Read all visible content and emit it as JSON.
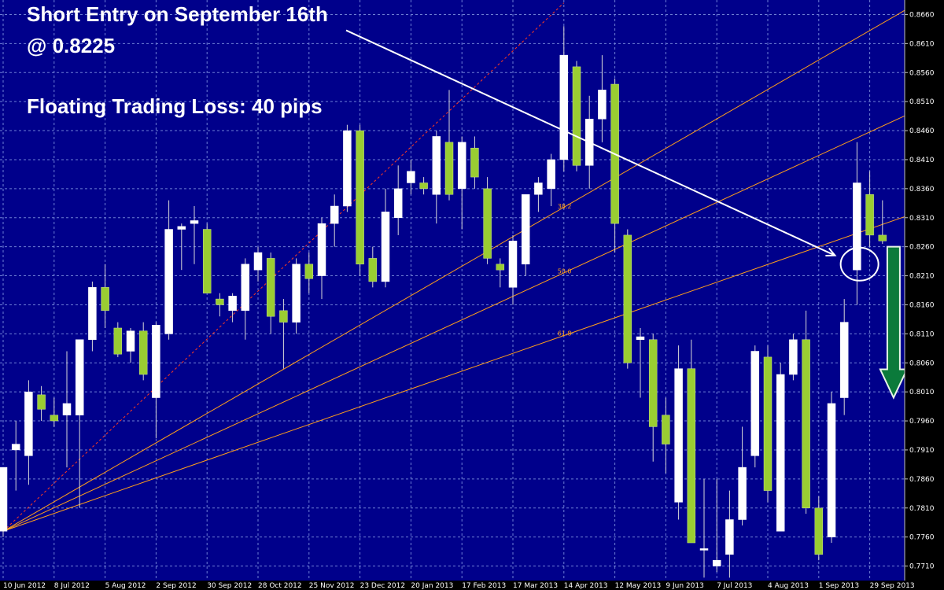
{
  "annotations": {
    "line1": "Short Entry on September 16th",
    "line2": "@ 0.8225",
    "line3": "Floating Trading Loss: 40 pips"
  },
  "colors": {
    "background": "#00008b",
    "grid": "#6e7fd6",
    "bull": "#ffffff",
    "bear": "#9acd32",
    "wick": "#d8d8d8",
    "fan": "#ff9f1a",
    "arrow_white": "#ffffff",
    "arrow_green": "#0b7a3b"
  },
  "chart_data": {
    "type": "candlestick",
    "symbol_timeframe": "weekly",
    "ylim": [
      0.7685,
      0.8685
    ],
    "y_ticks": [
      "0.8660",
      "0.8610",
      "0.8560",
      "0.8510",
      "0.8460",
      "0.8410",
      "0.8360",
      "0.8310",
      "0.8260",
      "0.8210",
      "0.8160",
      "0.8110",
      "0.8060",
      "0.8010",
      "0.7960",
      "0.7910",
      "0.7860",
      "0.7810",
      "0.7760",
      "0.7710"
    ],
    "x_ticks": [
      {
        "label": "10 Jun 2012",
        "index": 0
      },
      {
        "label": "8 Jul 2012",
        "index": 4
      },
      {
        "label": "5 Aug 2012",
        "index": 8
      },
      {
        "label": "2 Sep 2012",
        "index": 12
      },
      {
        "label": "30 Sep 2012",
        "index": 16
      },
      {
        "label": "28 Oct 2012",
        "index": 20
      },
      {
        "label": "25 Nov 2012",
        "index": 24
      },
      {
        "label": "23 Dec 2012",
        "index": 28
      },
      {
        "label": "20 Jan 2013",
        "index": 32
      },
      {
        "label": "17 Feb 2013",
        "index": 36
      },
      {
        "label": "17 Mar 2013",
        "index": 40
      },
      {
        "label": "14 Apr 2013",
        "index": 44
      },
      {
        "label": "12 May 2013",
        "index": 48
      },
      {
        "label": "9 Jun 2013",
        "index": 52
      },
      {
        "label": "7 Jul 2013",
        "index": 56
      },
      {
        "label": "4 Aug 2013",
        "index": 60
      },
      {
        "label": "1 Sep 2013",
        "index": 64
      },
      {
        "label": "29 Sep 2013",
        "index": 68
      }
    ],
    "candles": [
      {
        "o": 0.777,
        "h": 0.788,
        "l": 0.776,
        "c": 0.788
      },
      {
        "o": 0.791,
        "h": 0.796,
        "l": 0.784,
        "c": 0.792
      },
      {
        "o": 0.79,
        "h": 0.803,
        "l": 0.785,
        "c": 0.801
      },
      {
        "o": 0.8005,
        "h": 0.802,
        "l": 0.796,
        "c": 0.798
      },
      {
        "o": 0.797,
        "h": 0.8,
        "l": 0.795,
        "c": 0.796
      },
      {
        "o": 0.797,
        "h": 0.808,
        "l": 0.788,
        "c": 0.799
      },
      {
        "o": 0.797,
        "h": 0.81,
        "l": 0.781,
        "c": 0.81
      },
      {
        "o": 0.81,
        "h": 0.82,
        "l": 0.808,
        "c": 0.819
      },
      {
        "o": 0.819,
        "h": 0.823,
        "l": 0.812,
        "c": 0.815
      },
      {
        "o": 0.812,
        "h": 0.813,
        "l": 0.807,
        "c": 0.8075
      },
      {
        "o": 0.808,
        "h": 0.812,
        "l": 0.806,
        "c": 0.8115
      },
      {
        "o": 0.8115,
        "h": 0.813,
        "l": 0.803,
        "c": 0.804
      },
      {
        "o": 0.8,
        "h": 0.813,
        "l": 0.793,
        "c": 0.8125
      },
      {
        "o": 0.811,
        "h": 0.834,
        "l": 0.81,
        "c": 0.829
      },
      {
        "o": 0.829,
        "h": 0.83,
        "l": 0.822,
        "c": 0.8295
      },
      {
        "o": 0.83,
        "h": 0.833,
        "l": 0.823,
        "c": 0.8305
      },
      {
        "o": 0.829,
        "h": 0.83,
        "l": 0.818,
        "c": 0.818
      },
      {
        "o": 0.817,
        "h": 0.818,
        "l": 0.814,
        "c": 0.816
      },
      {
        "o": 0.815,
        "h": 0.818,
        "l": 0.813,
        "c": 0.8175
      },
      {
        "o": 0.815,
        "h": 0.824,
        "l": 0.81,
        "c": 0.823
      },
      {
        "o": 0.822,
        "h": 0.826,
        "l": 0.82,
        "c": 0.825
      },
      {
        "o": 0.824,
        "h": 0.825,
        "l": 0.811,
        "c": 0.814
      },
      {
        "o": 0.815,
        "h": 0.817,
        "l": 0.805,
        "c": 0.813
      },
      {
        "o": 0.813,
        "h": 0.824,
        "l": 0.811,
        "c": 0.823
      },
      {
        "o": 0.823,
        "h": 0.825,
        "l": 0.818,
        "c": 0.8205
      },
      {
        "o": 0.821,
        "h": 0.831,
        "l": 0.817,
        "c": 0.83
      },
      {
        "o": 0.83,
        "h": 0.835,
        "l": 0.826,
        "c": 0.833
      },
      {
        "o": 0.833,
        "h": 0.847,
        "l": 0.832,
        "c": 0.846
      },
      {
        "o": 0.846,
        "h": 0.847,
        "l": 0.821,
        "c": 0.823
      },
      {
        "o": 0.824,
        "h": 0.826,
        "l": 0.819,
        "c": 0.82
      },
      {
        "o": 0.82,
        "h": 0.836,
        "l": 0.819,
        "c": 0.832
      },
      {
        "o": 0.831,
        "h": 0.84,
        "l": 0.828,
        "c": 0.836
      },
      {
        "o": 0.837,
        "h": 0.841,
        "l": 0.835,
        "c": 0.839
      },
      {
        "o": 0.837,
        "h": 0.838,
        "l": 0.835,
        "c": 0.836
      },
      {
        "o": 0.835,
        "h": 0.846,
        "l": 0.83,
        "c": 0.845
      },
      {
        "o": 0.844,
        "h": 0.853,
        "l": 0.834,
        "c": 0.835
      },
      {
        "o": 0.836,
        "h": 0.845,
        "l": 0.829,
        "c": 0.844
      },
      {
        "o": 0.843,
        "h": 0.845,
        "l": 0.836,
        "c": 0.838
      },
      {
        "o": 0.836,
        "h": 0.838,
        "l": 0.823,
        "c": 0.824
      },
      {
        "o": 0.823,
        "h": 0.824,
        "l": 0.819,
        "c": 0.822
      },
      {
        "o": 0.819,
        "h": 0.828,
        "l": 0.816,
        "c": 0.827
      },
      {
        "o": 0.823,
        "h": 0.835,
        "l": 0.821,
        "c": 0.835
      },
      {
        "o": 0.835,
        "h": 0.838,
        "l": 0.832,
        "c": 0.837
      },
      {
        "o": 0.836,
        "h": 0.842,
        "l": 0.833,
        "c": 0.841
      },
      {
        "o": 0.841,
        "h": 0.864,
        "l": 0.839,
        "c": 0.859
      },
      {
        "o": 0.857,
        "h": 0.858,
        "l": 0.839,
        "c": 0.84
      },
      {
        "o": 0.84,
        "h": 0.852,
        "l": 0.836,
        "c": 0.848
      },
      {
        "o": 0.848,
        "h": 0.859,
        "l": 0.844,
        "c": 0.853
      },
      {
        "o": 0.854,
        "h": 0.855,
        "l": 0.825,
        "c": 0.83
      },
      {
        "o": 0.828,
        "h": 0.829,
        "l": 0.805,
        "c": 0.806
      },
      {
        "o": 0.81,
        "h": 0.812,
        "l": 0.8,
        "c": 0.8105
      },
      {
        "o": 0.81,
        "h": 0.811,
        "l": 0.789,
        "c": 0.795
      },
      {
        "o": 0.797,
        "h": 0.8,
        "l": 0.787,
        "c": 0.792
      },
      {
        "o": 0.782,
        "h": 0.809,
        "l": 0.779,
        "c": 0.805
      },
      {
        "o": 0.805,
        "h": 0.81,
        "l": 0.775,
        "c": 0.775
      },
      {
        "o": 0.774,
        "h": 0.786,
        "l": 0.769,
        "c": 0.774
      },
      {
        "o": 0.771,
        "h": 0.786,
        "l": 0.77,
        "c": 0.772
      },
      {
        "o": 0.773,
        "h": 0.784,
        "l": 0.769,
        "c": 0.779
      },
      {
        "o": 0.779,
        "h": 0.795,
        "l": 0.778,
        "c": 0.788
      },
      {
        "o": 0.79,
        "h": 0.809,
        "l": 0.788,
        "c": 0.808
      },
      {
        "o": 0.807,
        "h": 0.809,
        "l": 0.782,
        "c": 0.784
      },
      {
        "o": 0.777,
        "h": 0.806,
        "l": 0.777,
        "c": 0.804
      },
      {
        "o": 0.804,
        "h": 0.811,
        "l": 0.803,
        "c": 0.81
      },
      {
        "o": 0.81,
        "h": 0.815,
        "l": 0.78,
        "c": 0.781
      },
      {
        "o": 0.781,
        "h": 0.783,
        "l": 0.772,
        "c": 0.773
      },
      {
        "o": 0.776,
        "h": 0.801,
        "l": 0.775,
        "c": 0.799
      },
      {
        "o": 0.8,
        "h": 0.817,
        "l": 0.797,
        "c": 0.813
      },
      {
        "o": 0.822,
        "h": 0.844,
        "l": 0.816,
        "c": 0.837
      },
      {
        "o": 0.835,
        "h": 0.839,
        "l": 0.826,
        "c": 0.828
      },
      {
        "o": 0.828,
        "h": 0.834,
        "l": 0.8265,
        "c": 0.827
      }
    ],
    "fib_fan": {
      "origin": {
        "index": 0,
        "price": 0.777
      },
      "levels": [
        {
          "label": "",
          "price_at_index_44": 0.868,
          "style": "dashed-red"
        },
        {
          "label": "38.2",
          "price_at_index_44": 0.8328,
          "style": "solid"
        },
        {
          "label": "50.0",
          "price_at_index_44": 0.8215,
          "style": "solid"
        },
        {
          "label": "61.8",
          "price_at_index_44": 0.8107,
          "style": "solid"
        }
      ]
    },
    "markers": {
      "pointer_from": {
        "index": 30,
        "price": 0.863
      },
      "pointer_to": {
        "index": 67,
        "price": 0.8245
      },
      "circle": {
        "index": 67.2,
        "price": 0.823
      },
      "down_arrow": {
        "index": 69.5,
        "price_top": 0.826,
        "price_bottom": 0.8
      }
    }
  }
}
